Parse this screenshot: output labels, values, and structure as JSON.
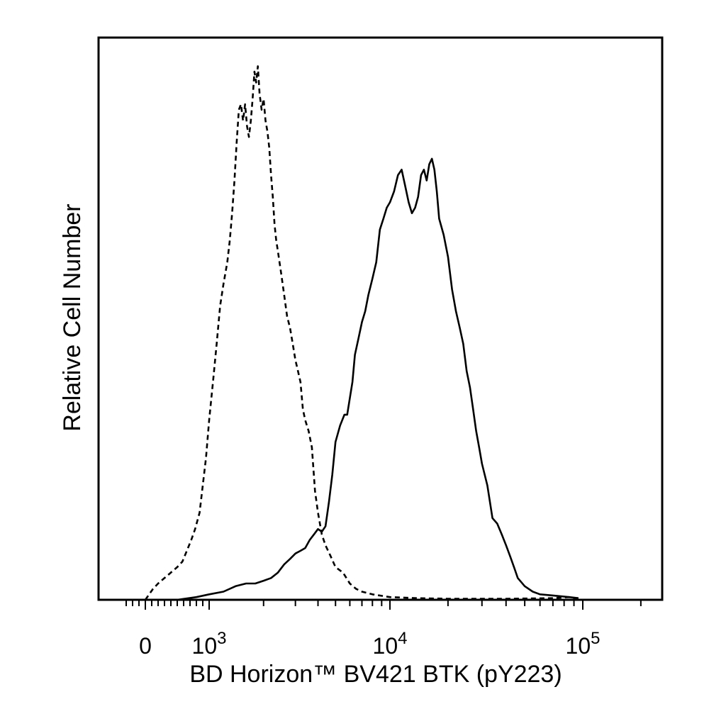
{
  "chart_data": {
    "type": "line",
    "xlabel": "BD Horizon™ BV421 BTK (pY223)",
    "ylabel": "Relative Cell Number",
    "x_scale": "biexponential",
    "x_tick_labels": [
      {
        "value": 0,
        "label": "0",
        "exponent": ""
      },
      {
        "value": 1000,
        "label": "10",
        "exponent": "3"
      },
      {
        "value": 10000,
        "label": "10",
        "exponent": "4"
      },
      {
        "value": 100000,
        "label": "10",
        "exponent": "5"
      }
    ],
    "xlim": [
      -300,
      260000
    ],
    "ylim": [
      0,
      100
    ],
    "grid": false,
    "legend": "none",
    "series": [
      {
        "style": "dashed",
        "color": "#000000",
        "points": [
          [
            0,
            0
          ],
          [
            120,
            2
          ],
          [
            200,
            3
          ],
          [
            300,
            4
          ],
          [
            400,
            5
          ],
          [
            500,
            6
          ],
          [
            580,
            7
          ],
          [
            650,
            9
          ],
          [
            720,
            11
          ],
          [
            780,
            13
          ],
          [
            850,
            16
          ],
          [
            900,
            21
          ],
          [
            950,
            26
          ],
          [
            1000,
            33
          ],
          [
            1050,
            40
          ],
          [
            1100,
            47
          ],
          [
            1150,
            54
          ],
          [
            1200,
            58
          ],
          [
            1260,
            62
          ],
          [
            1300,
            66
          ],
          [
            1340,
            71
          ],
          [
            1380,
            77
          ],
          [
            1420,
            84
          ],
          [
            1460,
            90
          ],
          [
            1500,
            91
          ],
          [
            1540,
            88
          ],
          [
            1580,
            91
          ],
          [
            1620,
            87
          ],
          [
            1660,
            85
          ],
          [
            1700,
            88
          ],
          [
            1740,
            92
          ],
          [
            1780,
            97
          ],
          [
            1820,
            95
          ],
          [
            1860,
            98
          ],
          [
            1900,
            93
          ],
          [
            1950,
            90
          ],
          [
            2000,
            92
          ],
          [
            2050,
            88
          ],
          [
            2100,
            86
          ],
          [
            2150,
            83
          ],
          [
            2200,
            78
          ],
          [
            2250,
            74
          ],
          [
            2300,
            69
          ],
          [
            2350,
            66
          ],
          [
            2400,
            64
          ],
          [
            2500,
            60
          ],
          [
            2600,
            56
          ],
          [
            2700,
            52
          ],
          [
            2800,
            50
          ],
          [
            2900,
            47
          ],
          [
            3000,
            44
          ],
          [
            3100,
            42
          ],
          [
            3200,
            40
          ],
          [
            3300,
            35
          ],
          [
            3400,
            33
          ],
          [
            3550,
            31
          ],
          [
            3700,
            28
          ],
          [
            3850,
            20
          ],
          [
            4000,
            16
          ],
          [
            4200,
            12
          ],
          [
            4400,
            10
          ],
          [
            4700,
            8
          ],
          [
            5000,
            6
          ],
          [
            5500,
            5
          ],
          [
            6000,
            3
          ],
          [
            6500,
            2
          ],
          [
            7000,
            1.5
          ],
          [
            8000,
            1
          ],
          [
            10000,
            0.5
          ],
          [
            14000,
            0.3
          ],
          [
            20000,
            0.2
          ],
          [
            40000,
            0.2
          ],
          [
            70000,
            0.3
          ],
          [
            85000,
            0.5
          ],
          [
            95000,
            0.2
          ]
        ]
      },
      {
        "style": "solid",
        "color": "#000000",
        "points": [
          [
            500,
            0
          ],
          [
            800,
            0.5
          ],
          [
            1000,
            1
          ],
          [
            1200,
            1.5
          ],
          [
            1400,
            2.5
          ],
          [
            1600,
            3
          ],
          [
            1800,
            3
          ],
          [
            2000,
            3.5
          ],
          [
            2200,
            4
          ],
          [
            2400,
            5
          ],
          [
            2600,
            6.5
          ],
          [
            2800,
            7.5
          ],
          [
            3000,
            8.5
          ],
          [
            3200,
            9
          ],
          [
            3400,
            9.5
          ],
          [
            3600,
            11
          ],
          [
            3800,
            12
          ],
          [
            4000,
            13
          ],
          [
            4200,
            12.5
          ],
          [
            4400,
            13.5
          ],
          [
            4600,
            18
          ],
          [
            4800,
            23
          ],
          [
            5000,
            29
          ],
          [
            5300,
            32
          ],
          [
            5600,
            34
          ],
          [
            5800,
            34
          ],
          [
            6000,
            37
          ],
          [
            6200,
            40
          ],
          [
            6400,
            45
          ],
          [
            6700,
            48
          ],
          [
            7000,
            51
          ],
          [
            7300,
            53
          ],
          [
            7600,
            56
          ],
          [
            8000,
            59
          ],
          [
            8400,
            62
          ],
          [
            8800,
            68
          ],
          [
            9200,
            70
          ],
          [
            9600,
            72
          ],
          [
            10000,
            73
          ],
          [
            10500,
            75
          ],
          [
            11000,
            78
          ],
          [
            11500,
            79
          ],
          [
            12000,
            76
          ],
          [
            12500,
            73
          ],
          [
            13000,
            71
          ],
          [
            13500,
            72
          ],
          [
            14000,
            74
          ],
          [
            14500,
            78
          ],
          [
            15000,
            79
          ],
          [
            15500,
            77
          ],
          [
            16000,
            80
          ],
          [
            16500,
            81
          ],
          [
            17000,
            79
          ],
          [
            17500,
            75
          ],
          [
            18000,
            70
          ],
          [
            19000,
            67
          ],
          [
            20000,
            63
          ],
          [
            21000,
            57
          ],
          [
            22000,
            53
          ],
          [
            23000,
            50
          ],
          [
            24000,
            47
          ],
          [
            25000,
            42
          ],
          [
            26000,
            39
          ],
          [
            27000,
            35
          ],
          [
            28000,
            31
          ],
          [
            29000,
            28
          ],
          [
            30000,
            25
          ],
          [
            32000,
            21
          ],
          [
            34000,
            15
          ],
          [
            36000,
            14
          ],
          [
            38000,
            12
          ],
          [
            40000,
            10
          ],
          [
            42000,
            8
          ],
          [
            44000,
            6
          ],
          [
            46000,
            4
          ],
          [
            50000,
            2.5
          ],
          [
            55000,
            1.5
          ],
          [
            60000,
            1
          ],
          [
            70000,
            0.8
          ],
          [
            85000,
            0.5
          ],
          [
            95000,
            0.3
          ]
        ]
      }
    ]
  }
}
